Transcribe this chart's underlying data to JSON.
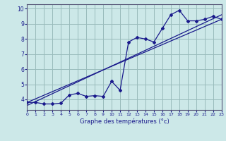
{
  "xlabel": "Graphe des températures (°c)",
  "bg_color": "#cce8e8",
  "line_color": "#1a1a8c",
  "grid_color": "#99bbbb",
  "hours": [
    0,
    1,
    2,
    3,
    4,
    5,
    6,
    7,
    8,
    9,
    10,
    11,
    12,
    13,
    14,
    15,
    16,
    17,
    18,
    19,
    20,
    21,
    22,
    23
  ],
  "temps": [
    3.8,
    3.8,
    3.7,
    3.7,
    3.75,
    4.3,
    4.4,
    4.2,
    4.25,
    4.2,
    5.2,
    4.6,
    7.8,
    8.1,
    8.0,
    7.8,
    8.7,
    9.6,
    9.9,
    9.2,
    9.2,
    9.3,
    9.5,
    9.3
  ],
  "trend1_x": [
    0,
    23
  ],
  "trend1_y": [
    3.8,
    9.3
  ],
  "trend2_x": [
    0,
    23
  ],
  "trend2_y": [
    3.6,
    9.6
  ],
  "ylim": [
    3.3,
    10.3
  ],
  "xlim": [
    0,
    23
  ],
  "yticks": [
    4,
    5,
    6,
    7,
    8,
    9,
    10
  ],
  "xticks": [
    0,
    1,
    2,
    3,
    4,
    5,
    6,
    7,
    8,
    9,
    10,
    11,
    12,
    13,
    14,
    15,
    16,
    17,
    18,
    19,
    20,
    21,
    22,
    23
  ]
}
